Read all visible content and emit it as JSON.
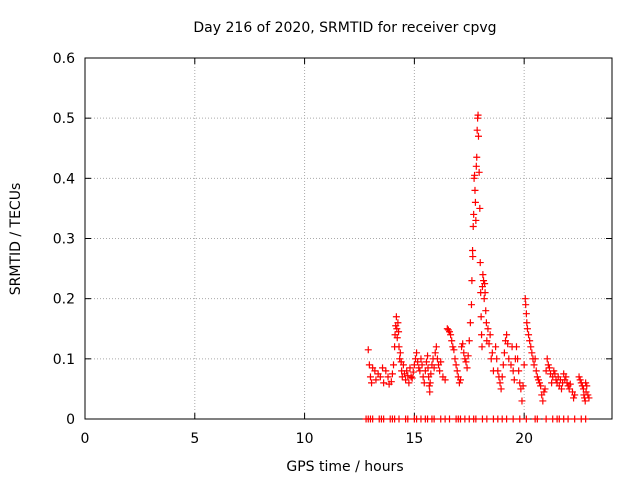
{
  "chart_data": {
    "type": "scatter",
    "title": "Day 216 of 2020, SRMTID for receiver cpvg",
    "xlabel": "GPS time / hours",
    "ylabel": "SRMTID / TECUs",
    "xlim": [
      0,
      24
    ],
    "ylim": [
      0,
      0.6
    ],
    "xticks": [
      0,
      5,
      10,
      15,
      20
    ],
    "yticks": [
      0,
      0.1,
      0.2,
      0.3,
      0.4,
      0.5,
      0.6
    ],
    "xtick_labels": [
      "0",
      "5",
      "10",
      "15",
      "20"
    ],
    "ytick_labels": [
      "0",
      "0.1",
      "0.2",
      "0.3",
      "0.4",
      "0.5",
      "0.6"
    ],
    "grid": true,
    "marker": "+",
    "colors": {
      "marker": "#ff0000",
      "grid": "#aaaaaa",
      "axis": "#000000"
    },
    "series": [
      {
        "name": "SRMTID",
        "points": [
          [
            12.8,
            0.0
          ],
          [
            12.9,
            0.0
          ],
          [
            13.0,
            0.0
          ],
          [
            13.1,
            0.0
          ],
          [
            13.4,
            0.0
          ],
          [
            13.5,
            0.0
          ],
          [
            13.6,
            0.0
          ],
          [
            13.9,
            0.0
          ],
          [
            14.0,
            0.0
          ],
          [
            14.1,
            0.0
          ],
          [
            14.3,
            0.0
          ],
          [
            14.6,
            0.0
          ],
          [
            14.7,
            0.0
          ],
          [
            15.0,
            0.0
          ],
          [
            15.1,
            0.0
          ],
          [
            15.3,
            0.0
          ],
          [
            15.5,
            0.0
          ],
          [
            15.6,
            0.0
          ],
          [
            15.8,
            0.0
          ],
          [
            15.9,
            0.0
          ],
          [
            16.2,
            0.0
          ],
          [
            16.4,
            0.0
          ],
          [
            16.6,
            0.0
          ],
          [
            16.9,
            0.0
          ],
          [
            17.0,
            0.0
          ],
          [
            17.1,
            0.0
          ],
          [
            17.3,
            0.0
          ],
          [
            17.5,
            0.0
          ],
          [
            17.7,
            0.0
          ],
          [
            17.8,
            0.0
          ],
          [
            18.1,
            0.0
          ],
          [
            18.3,
            0.0
          ],
          [
            18.6,
            0.0
          ],
          [
            18.8,
            0.0
          ],
          [
            19.0,
            0.0
          ],
          [
            19.2,
            0.0
          ],
          [
            19.5,
            0.0
          ],
          [
            19.8,
            0.0
          ],
          [
            20.1,
            0.0
          ],
          [
            20.5,
            0.0
          ],
          [
            20.6,
            0.0
          ],
          [
            21.0,
            0.0
          ],
          [
            21.3,
            0.0
          ],
          [
            21.5,
            0.0
          ],
          [
            21.6,
            0.0
          ],
          [
            21.8,
            0.0
          ],
          [
            22.0,
            0.0
          ],
          [
            22.3,
            0.0
          ],
          [
            22.6,
            0.0
          ],
          [
            22.8,
            0.0
          ],
          [
            12.9,
            0.115
          ],
          [
            12.95,
            0.09
          ],
          [
            13.0,
            0.07
          ],
          [
            13.05,
            0.06
          ],
          [
            13.1,
            0.085
          ],
          [
            13.2,
            0.08
          ],
          [
            13.25,
            0.065
          ],
          [
            13.35,
            0.075
          ],
          [
            13.45,
            0.07
          ],
          [
            13.55,
            0.085
          ],
          [
            13.6,
            0.06
          ],
          [
            13.7,
            0.08
          ],
          [
            13.8,
            0.07
          ],
          [
            13.85,
            0.058
          ],
          [
            13.95,
            0.062
          ],
          [
            14.0,
            0.075
          ],
          [
            14.05,
            0.09
          ],
          [
            14.1,
            0.12
          ],
          [
            14.12,
            0.14
          ],
          [
            14.15,
            0.155
          ],
          [
            14.18,
            0.17
          ],
          [
            14.2,
            0.15
          ],
          [
            14.22,
            0.135
          ],
          [
            14.25,
            0.16
          ],
          [
            14.28,
            0.145
          ],
          [
            14.3,
            0.12
          ],
          [
            14.33,
            0.1
          ],
          [
            14.36,
            0.11
          ],
          [
            14.4,
            0.095
          ],
          [
            14.42,
            0.08
          ],
          [
            14.45,
            0.07
          ],
          [
            14.5,
            0.09
          ],
          [
            14.55,
            0.075
          ],
          [
            14.6,
            0.065
          ],
          [
            14.65,
            0.08
          ],
          [
            14.7,
            0.072
          ],
          [
            14.75,
            0.06
          ],
          [
            14.8,
            0.085
          ],
          [
            14.85,
            0.07
          ],
          [
            14.9,
            0.068
          ],
          [
            14.95,
            0.078
          ],
          [
            15.0,
            0.09
          ],
          [
            15.05,
            0.1
          ],
          [
            15.1,
            0.11
          ],
          [
            15.15,
            0.095
          ],
          [
            15.2,
            0.085
          ],
          [
            15.25,
            0.08
          ],
          [
            15.3,
            0.1
          ],
          [
            15.35,
            0.09
          ],
          [
            15.4,
            0.07
          ],
          [
            15.45,
            0.06
          ],
          [
            15.5,
            0.08
          ],
          [
            15.55,
            0.095
          ],
          [
            15.6,
            0.105
          ],
          [
            15.62,
            0.085
          ],
          [
            15.65,
            0.07
          ],
          [
            15.68,
            0.055
          ],
          [
            15.7,
            0.045
          ],
          [
            15.72,
            0.06
          ],
          [
            15.75,
            0.075
          ],
          [
            15.8,
            0.09
          ],
          [
            15.85,
            0.1
          ],
          [
            15.9,
            0.085
          ],
          [
            15.95,
            0.11
          ],
          [
            16.0,
            0.12
          ],
          [
            16.05,
            0.1
          ],
          [
            16.1,
            0.09
          ],
          [
            16.15,
            0.08
          ],
          [
            16.2,
            0.095
          ],
          [
            16.3,
            0.07
          ],
          [
            16.4,
            0.065
          ],
          [
            16.5,
            0.15
          ],
          [
            16.55,
            0.148
          ],
          [
            16.6,
            0.145
          ],
          [
            16.65,
            0.14
          ],
          [
            16.7,
            0.13
          ],
          [
            16.75,
            0.12
          ],
          [
            16.8,
            0.115
          ],
          [
            16.85,
            0.1
          ],
          [
            16.9,
            0.09
          ],
          [
            16.95,
            0.08
          ],
          [
            17.0,
            0.07
          ],
          [
            17.05,
            0.06
          ],
          [
            17.1,
            0.065
          ],
          [
            17.15,
            0.12
          ],
          [
            17.2,
            0.125
          ],
          [
            17.25,
            0.11
          ],
          [
            17.3,
            0.1
          ],
          [
            17.35,
            0.095
          ],
          [
            17.4,
            0.085
          ],
          [
            17.45,
            0.105
          ],
          [
            17.5,
            0.13
          ],
          [
            17.55,
            0.16
          ],
          [
            17.6,
            0.19
          ],
          [
            17.62,
            0.23
          ],
          [
            17.65,
            0.28
          ],
          [
            17.66,
            0.27
          ],
          [
            17.68,
            0.32
          ],
          [
            17.7,
            0.34
          ],
          [
            17.72,
            0.4
          ],
          [
            17.74,
            0.405
          ],
          [
            17.76,
            0.38
          ],
          [
            17.78,
            0.36
          ],
          [
            17.8,
            0.33
          ],
          [
            17.82,
            0.42
          ],
          [
            17.84,
            0.435
          ],
          [
            17.86,
            0.48
          ],
          [
            17.88,
            0.5
          ],
          [
            17.9,
            0.505
          ],
          [
            17.92,
            0.47
          ],
          [
            17.95,
            0.41
          ],
          [
            17.98,
            0.35
          ],
          [
            18.0,
            0.26
          ],
          [
            18.02,
            0.21
          ],
          [
            18.04,
            0.17
          ],
          [
            18.06,
            0.14
          ],
          [
            18.08,
            0.12
          ],
          [
            18.1,
            0.22
          ],
          [
            18.12,
            0.24
          ],
          [
            18.15,
            0.23
          ],
          [
            18.18,
            0.2
          ],
          [
            18.2,
            0.225
          ],
          [
            18.22,
            0.21
          ],
          [
            18.25,
            0.18
          ],
          [
            18.28,
            0.16
          ],
          [
            18.3,
            0.13
          ],
          [
            18.35,
            0.15
          ],
          [
            18.4,
            0.125
          ],
          [
            18.45,
            0.14
          ],
          [
            18.5,
            0.1
          ],
          [
            18.55,
            0.11
          ],
          [
            18.6,
            0.08
          ],
          [
            18.7,
            0.12
          ],
          [
            18.75,
            0.1
          ],
          [
            18.8,
            0.08
          ],
          [
            18.85,
            0.07
          ],
          [
            18.9,
            0.06
          ],
          [
            18.95,
            0.05
          ],
          [
            19.0,
            0.07
          ],
          [
            19.05,
            0.09
          ],
          [
            19.1,
            0.11
          ],
          [
            19.15,
            0.13
          ],
          [
            19.2,
            0.14
          ],
          [
            19.25,
            0.125
          ],
          [
            19.3,
            0.1
          ],
          [
            19.4,
            0.09
          ],
          [
            19.45,
            0.12
          ],
          [
            19.5,
            0.08
          ],
          [
            19.55,
            0.065
          ],
          [
            19.6,
            0.1
          ],
          [
            19.65,
            0.12
          ],
          [
            19.7,
            0.1
          ],
          [
            19.75,
            0.08
          ],
          [
            19.8,
            0.06
          ],
          [
            19.85,
            0.05
          ],
          [
            19.9,
            0.03
          ],
          [
            19.95,
            0.055
          ],
          [
            20.0,
            0.09
          ],
          [
            20.05,
            0.2
          ],
          [
            20.07,
            0.19
          ],
          [
            20.1,
            0.175
          ],
          [
            20.12,
            0.16
          ],
          [
            20.15,
            0.15
          ],
          [
            20.2,
            0.14
          ],
          [
            20.25,
            0.13
          ],
          [
            20.3,
            0.12
          ],
          [
            20.35,
            0.11
          ],
          [
            20.4,
            0.1
          ],
          [
            20.45,
            0.09
          ],
          [
            20.5,
            0.1
          ],
          [
            20.55,
            0.08
          ],
          [
            20.6,
            0.07
          ],
          [
            20.65,
            0.065
          ],
          [
            20.7,
            0.06
          ],
          [
            20.75,
            0.055
          ],
          [
            20.8,
            0.04
          ],
          [
            20.85,
            0.03
          ],
          [
            20.9,
            0.045
          ],
          [
            20.95,
            0.05
          ],
          [
            21.0,
            0.08
          ],
          [
            21.05,
            0.1
          ],
          [
            21.1,
            0.09
          ],
          [
            21.15,
            0.085
          ],
          [
            21.2,
            0.075
          ],
          [
            21.25,
            0.06
          ],
          [
            21.3,
            0.07
          ],
          [
            21.35,
            0.08
          ],
          [
            21.4,
            0.075
          ],
          [
            21.45,
            0.065
          ],
          [
            21.5,
            0.06
          ],
          [
            21.55,
            0.07
          ],
          [
            21.6,
            0.055
          ],
          [
            21.65,
            0.065
          ],
          [
            21.7,
            0.05
          ],
          [
            21.75,
            0.06
          ],
          [
            21.8,
            0.075
          ],
          [
            21.85,
            0.065
          ],
          [
            21.9,
            0.07
          ],
          [
            21.95,
            0.06
          ],
          [
            22.0,
            0.055
          ],
          [
            22.05,
            0.05
          ],
          [
            22.1,
            0.058
          ],
          [
            22.2,
            0.045
          ],
          [
            22.25,
            0.035
          ],
          [
            22.3,
            0.04
          ],
          [
            22.5,
            0.07
          ],
          [
            22.55,
            0.065
          ],
          [
            22.6,
            0.06
          ],
          [
            22.65,
            0.055
          ],
          [
            22.7,
            0.05
          ],
          [
            22.72,
            0.04
          ],
          [
            22.75,
            0.035
          ],
          [
            22.78,
            0.03
          ],
          [
            22.8,
            0.06
          ],
          [
            22.82,
            0.045
          ],
          [
            22.85,
            0.055
          ],
          [
            22.9,
            0.04
          ],
          [
            22.95,
            0.035
          ]
        ]
      }
    ]
  }
}
